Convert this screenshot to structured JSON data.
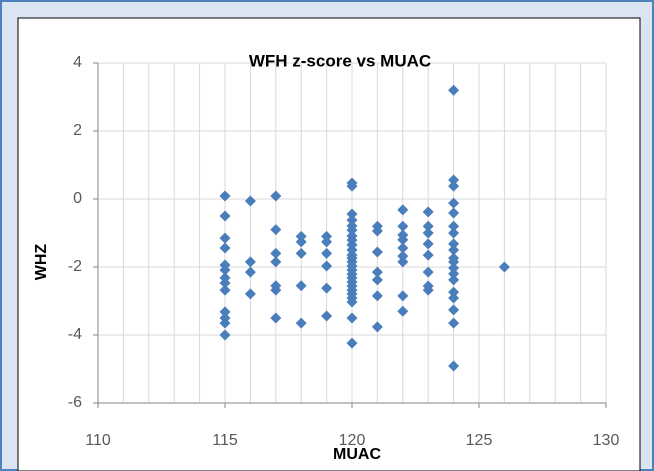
{
  "chart_data": {
    "type": "scatter",
    "title": "WFH z-score vs MUAC",
    "xlabel": "MUAC",
    "ylabel": "WHZ",
    "x": [
      115,
      115,
      115,
      115,
      115,
      115,
      115,
      115,
      115,
      115,
      115,
      115,
      115,
      116,
      116,
      116,
      116,
      117,
      117,
      117,
      117,
      117,
      117,
      117,
      118,
      118,
      118,
      118,
      118,
      119,
      119,
      119,
      119,
      119,
      119,
      120,
      120,
      120,
      120,
      120,
      120,
      120,
      120,
      120,
      120,
      120,
      120,
      120,
      120,
      120,
      120,
      120,
      120,
      120,
      120,
      120,
      120,
      120,
      120,
      120,
      121,
      121,
      121,
      121,
      121,
      121,
      121,
      122,
      122,
      122,
      122,
      122,
      122,
      122,
      122,
      122,
      123,
      123,
      123,
      123,
      123,
      123,
      123,
      123,
      124,
      124,
      124,
      124,
      124,
      124,
      124,
      124,
      124,
      124,
      124,
      124,
      124,
      124,
      124,
      124,
      124,
      124,
      124,
      126
    ],
    "values": [
      0.09,
      -0.5,
      -1.15,
      -1.44,
      -1.94,
      -2.09,
      -2.32,
      -2.47,
      -2.68,
      -3.32,
      -3.5,
      -3.65,
      -4.0,
      -0.06,
      -1.85,
      -2.15,
      -2.79,
      0.09,
      -0.9,
      -1.6,
      -1.85,
      -2.55,
      -2.68,
      -3.5,
      -1.1,
      -1.26,
      -1.6,
      -2.55,
      -3.65,
      -1.1,
      -1.26,
      -1.6,
      -1.97,
      -2.62,
      -3.44,
      0.47,
      0.38,
      -0.44,
      -0.62,
      -0.79,
      -0.91,
      -1.09,
      -1.21,
      -1.35,
      -1.5,
      -1.65,
      -1.74,
      -1.85,
      -1.97,
      -2.09,
      -2.21,
      -2.32,
      -2.44,
      -2.56,
      -2.68,
      -2.79,
      -2.91,
      -3.03,
      -3.5,
      -4.24,
      -0.8,
      -0.94,
      -1.56,
      -2.15,
      -2.38,
      -2.85,
      -3.76,
      -0.32,
      -0.8,
      -1.06,
      -1.2,
      -1.44,
      -1.68,
      -1.85,
      -2.85,
      -3.3,
      -0.38,
      -0.8,
      -1.0,
      -1.32,
      -1.65,
      -2.15,
      -2.56,
      -2.68,
      3.2,
      0.56,
      0.38,
      -0.12,
      -0.41,
      -0.8,
      -1.0,
      -1.32,
      -1.5,
      -1.74,
      -1.85,
      -2.03,
      -2.2,
      -2.38,
      -2.74,
      -2.91,
      -3.26,
      -3.65,
      -4.91,
      -2.0
    ],
    "color": "#4a7ebb",
    "xlim": [
      110,
      130
    ],
    "xticks": [
      110,
      115,
      120,
      125,
      130
    ],
    "ylim": [
      -6,
      4
    ],
    "yticks": [
      -6,
      -4,
      -2,
      0,
      2,
      4
    ],
    "grid": true
  }
}
